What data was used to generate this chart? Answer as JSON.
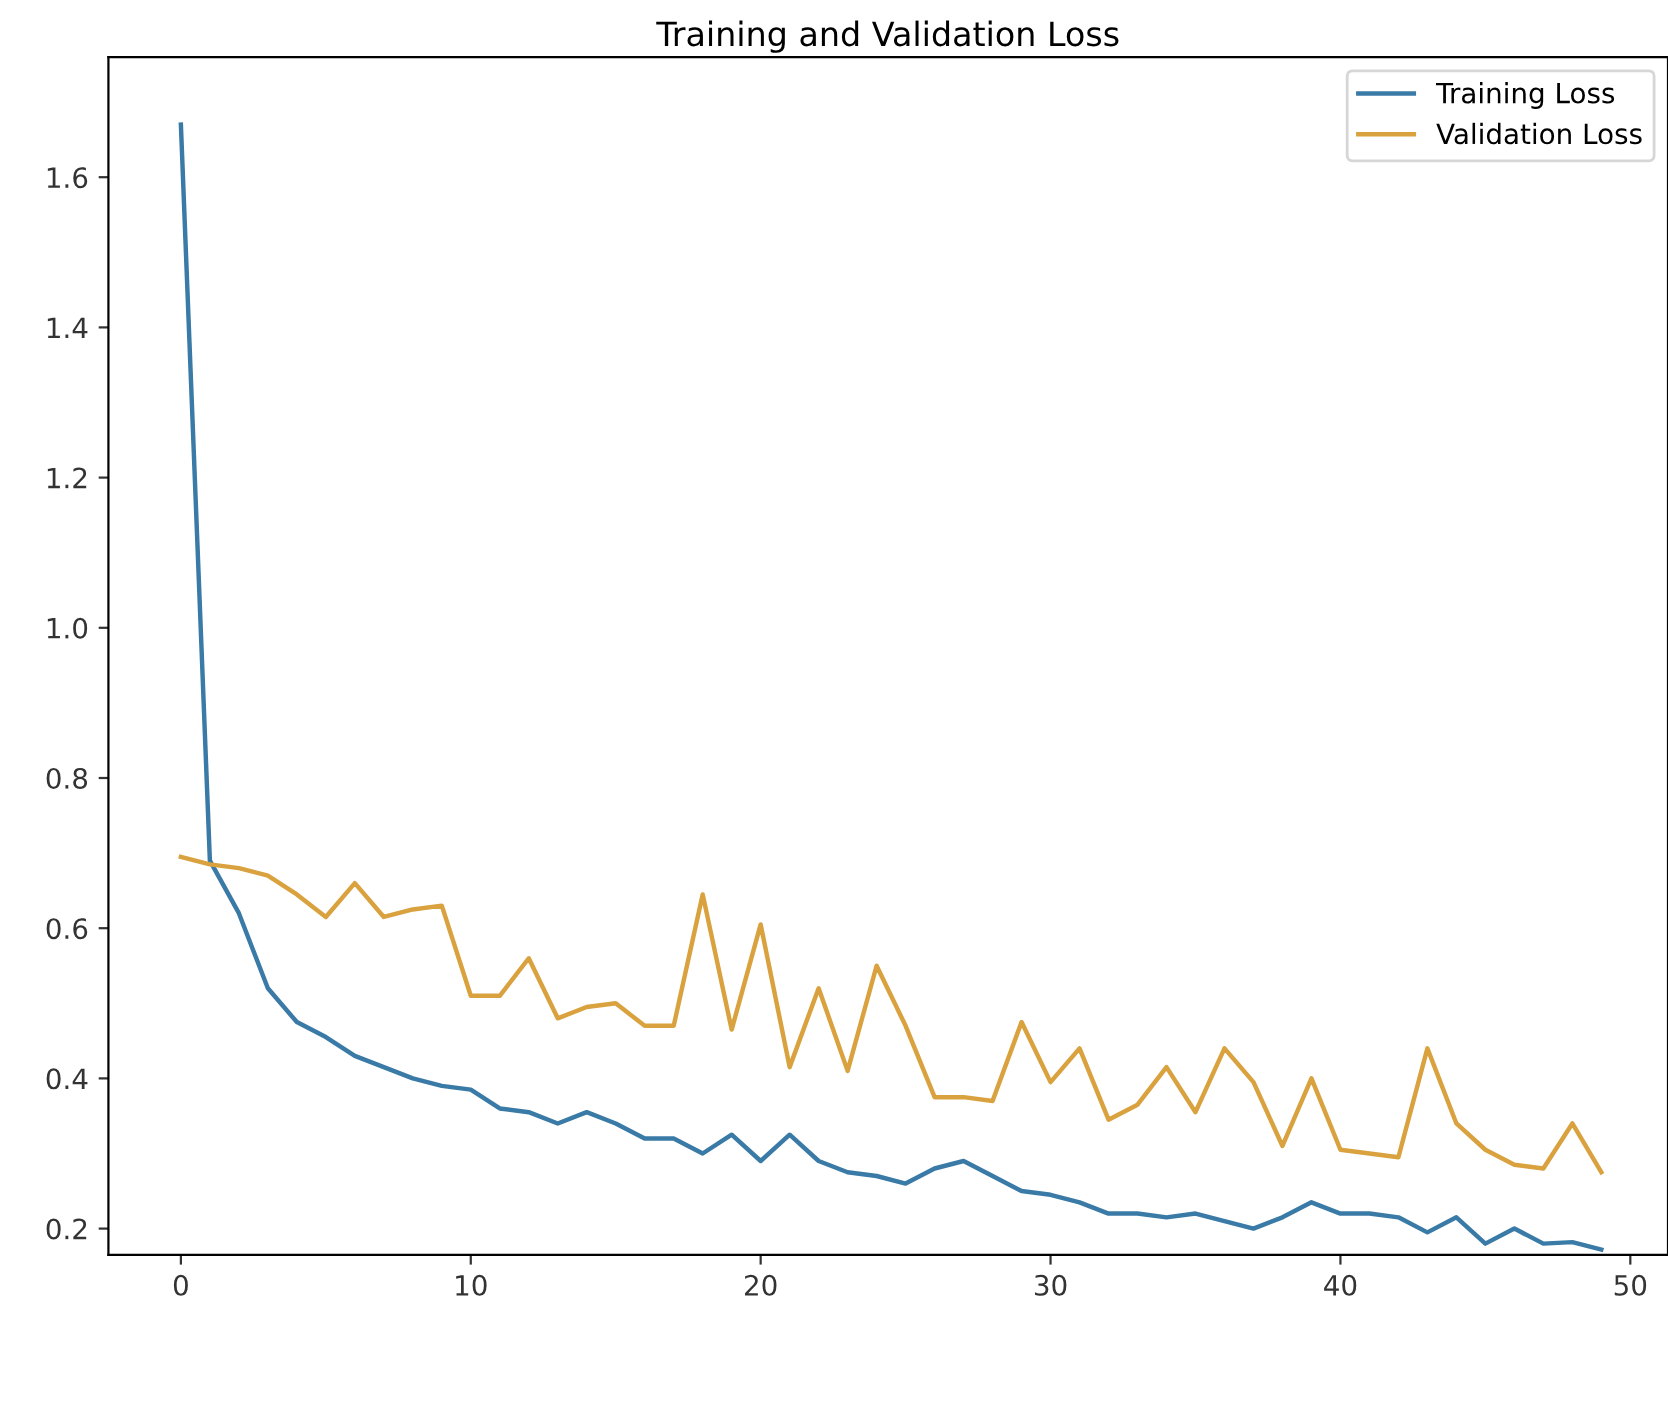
{
  "chart_data": {
    "type": "line",
    "title": "Training and Validation Loss",
    "x": [
      0,
      1,
      2,
      3,
      4,
      5,
      6,
      7,
      8,
      9,
      10,
      11,
      12,
      13,
      14,
      15,
      16,
      17,
      18,
      19,
      20,
      21,
      22,
      23,
      24,
      25,
      26,
      27,
      28,
      29,
      30,
      31,
      32,
      33,
      34,
      35,
      36,
      37,
      38,
      39,
      40,
      41,
      42,
      43,
      44,
      45,
      46,
      47,
      48,
      49
    ],
    "series": [
      {
        "name": "Training Loss",
        "color": "#3a7aa6",
        "values": [
          1.67,
          0.69,
          0.62,
          0.52,
          0.475,
          0.455,
          0.43,
          0.415,
          0.4,
          0.39,
          0.385,
          0.36,
          0.355,
          0.34,
          0.355,
          0.34,
          0.32,
          0.32,
          0.3,
          0.325,
          0.29,
          0.325,
          0.29,
          0.275,
          0.27,
          0.26,
          0.28,
          0.29,
          0.27,
          0.25,
          0.245,
          0.235,
          0.22,
          0.22,
          0.215,
          0.22,
          0.21,
          0.2,
          0.215,
          0.235,
          0.22,
          0.22,
          0.215,
          0.195,
          0.215,
          0.18,
          0.2,
          0.18,
          0.182,
          0.172
        ]
      },
      {
        "name": "Validation Loss",
        "color": "#d9a23f",
        "values": [
          0.695,
          0.685,
          0.68,
          0.67,
          0.645,
          0.615,
          0.66,
          0.615,
          0.625,
          0.63,
          0.51,
          0.51,
          0.56,
          0.48,
          0.495,
          0.5,
          0.47,
          0.47,
          0.645,
          0.465,
          0.605,
          0.415,
          0.52,
          0.41,
          0.55,
          0.47,
          0.375,
          0.375,
          0.37,
          0.475,
          0.395,
          0.44,
          0.345,
          0.365,
          0.415,
          0.355,
          0.44,
          0.395,
          0.31,
          0.4,
          0.305,
          0.3,
          0.295,
          0.44,
          0.34,
          0.305,
          0.285,
          0.28,
          0.34,
          0.275
        ]
      }
    ],
    "xlim": [
      -2.5,
      51.3
    ],
    "ylim": [
      0.165,
      1.76
    ],
    "xticks": [
      0,
      10,
      20,
      30,
      40,
      50
    ],
    "yticks": [
      {
        "value": 0.2,
        "label": "0.2"
      },
      {
        "value": 0.4,
        "label": "0.4"
      },
      {
        "value": 0.6,
        "label": "0.6"
      },
      {
        "value": 0.8,
        "label": "0.8"
      },
      {
        "value": 1.0,
        "label": "1.0"
      },
      {
        "value": 1.2,
        "label": "1.2"
      },
      {
        "value": 1.4,
        "label": "1.4"
      },
      {
        "value": 1.6,
        "label": "1.6"
      }
    ],
    "legend": "top right"
  }
}
